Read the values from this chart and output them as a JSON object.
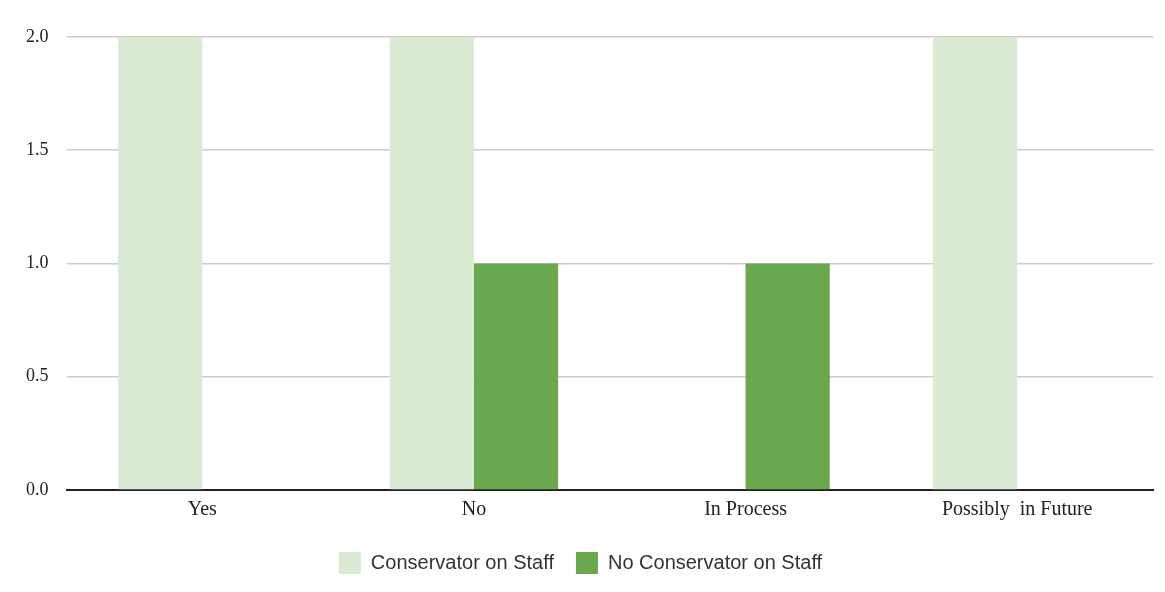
{
  "chart_data": {
    "type": "bar",
    "categories": [
      "Yes",
      "No",
      "In Process",
      "Possibly  in Future"
    ],
    "series": [
      {
        "name": "Conservator on Staff",
        "color": "#d9ead3",
        "values": [
          2,
          2,
          0,
          2
        ]
      },
      {
        "name": "No Conservator on Staff",
        "color": "#6aa84f",
        "values": [
          0,
          1,
          1,
          0
        ]
      }
    ],
    "ylim": [
      0,
      2
    ],
    "yticks": [
      {
        "value": 0,
        "label": "0.0"
      },
      {
        "value": 0.5,
        "label": "0.5"
      },
      {
        "value": 1,
        "label": "1.0"
      },
      {
        "value": 1.5,
        "label": "1.5"
      },
      {
        "value": 2,
        "label": "2.0"
      }
    ],
    "grid": "y",
    "legend": "bottom"
  }
}
